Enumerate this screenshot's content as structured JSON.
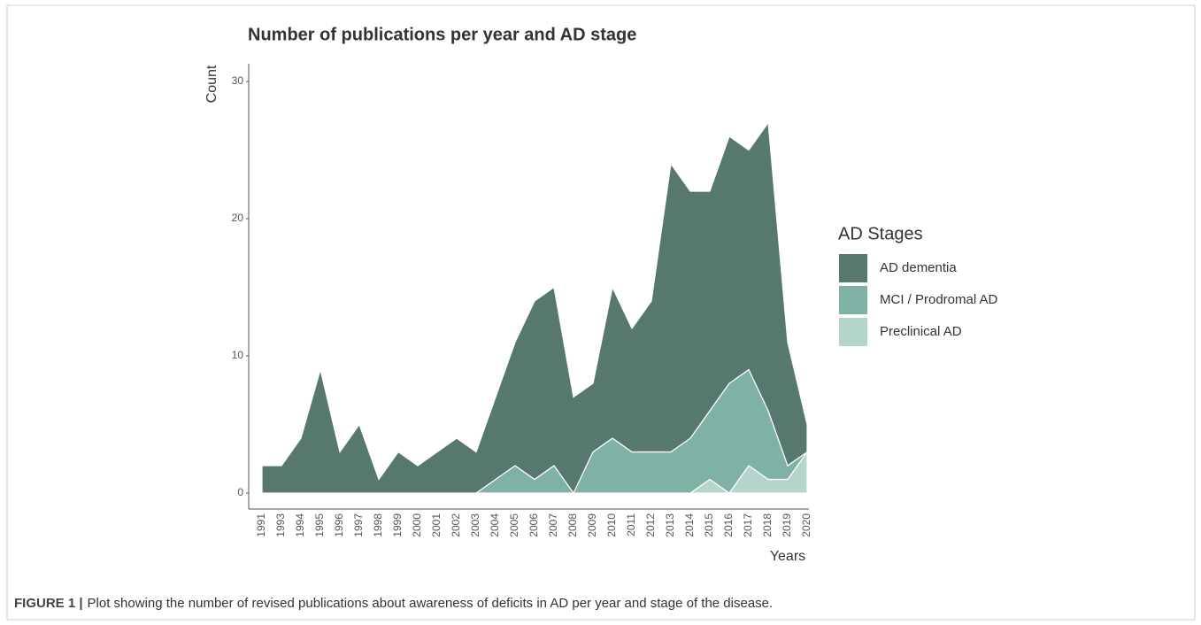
{
  "chart_data": {
    "type": "stacked-area",
    "title": "Number of publications per year and AD stage",
    "x_label": "Years",
    "y_label": "Count",
    "legend_title": "AD Stages",
    "legend": "right",
    "categories": [
      "1991",
      "1993",
      "1994",
      "1995",
      "1996",
      "1997",
      "1998",
      "1999",
      "2000",
      "2001",
      "2002",
      "2003",
      "2004",
      "2005",
      "2006",
      "2007",
      "2008",
      "2009",
      "2010",
      "2011",
      "2012",
      "2013",
      "2014",
      "2015",
      "2016",
      "2017",
      "2018",
      "2019",
      "2020"
    ],
    "series": [
      {
        "name": "AD dementia",
        "color": "#57786f",
        "values": [
          2,
          2,
          4,
          9,
          3,
          5,
          1,
          3,
          2,
          3,
          4,
          3,
          6,
          9,
          13,
          13,
          7,
          5,
          11,
          9,
          11,
          21,
          18,
          16,
          18,
          16,
          21,
          9,
          2
        ]
      },
      {
        "name": "MCI / Prodromal AD",
        "color": "#7fb1a4",
        "values": [
          0,
          0,
          0,
          0,
          0,
          0,
          0,
          0,
          0,
          0,
          0,
          0,
          1,
          2,
          1,
          2,
          0,
          3,
          4,
          3,
          3,
          3,
          4,
          5,
          8,
          7,
          5,
          1,
          0
        ]
      },
      {
        "name": "Preclinical AD",
        "color": "#b3d5cc",
        "values": [
          0,
          0,
          0,
          0,
          0,
          0,
          0,
          0,
          0,
          0,
          0,
          0,
          0,
          0,
          0,
          0,
          0,
          0,
          0,
          0,
          0,
          0,
          0,
          1,
          0,
          2,
          1,
          1,
          3
        ]
      }
    ],
    "ylim": [
      0,
      31
    ],
    "yticks": [
      0,
      10,
      20,
      30
    ],
    "grid": false,
    "caption_label": "FIGURE 1 |",
    "caption": "Plot showing the number of revised publications about awareness of deficits in AD per year and stage of the disease."
  }
}
